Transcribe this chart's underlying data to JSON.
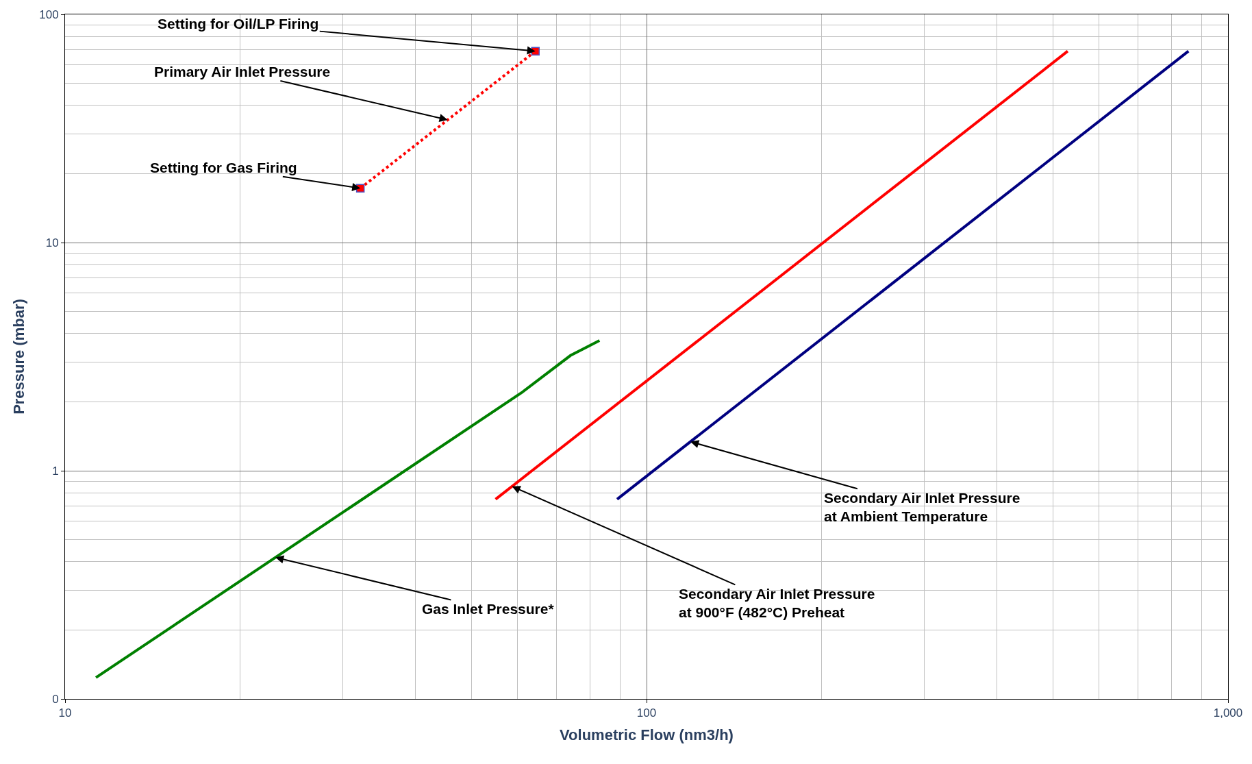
{
  "chart_data": {
    "type": "line",
    "xlabel": "Volumetric Flow (nm3/h)",
    "ylabel": "Pressure (mbar)",
    "log": "xy",
    "grid": true,
    "xlim": [
      10,
      1000
    ],
    "xticks": [
      10,
      100,
      {
        "value": 1000,
        "label": "1,000"
      }
    ],
    "ylim": [
      0.1,
      100
    ],
    "yticks": [
      {
        "value": 0.1,
        "label": "0"
      },
      1,
      10,
      100
    ],
    "series": [
      {
        "color": "#008000",
        "x": [
          11.3,
          61,
          74,
          83
        ],
        "values": [
          0.124,
          2.2,
          3.2,
          3.72
        ],
        "line_style": "solid",
        "marker": "none"
      },
      {
        "color": "#ff0000",
        "x": [
          55,
          530
        ],
        "values": [
          0.75,
          69
        ],
        "line_style": "solid",
        "marker": "none"
      },
      {
        "color": "#000080",
        "x": [
          89,
          855
        ],
        "values": [
          0.75,
          69
        ],
        "line_style": "solid",
        "marker": "none"
      },
      {
        "color": "#ff0000",
        "x": [
          32.2,
          64.4
        ],
        "values": [
          17.3,
          69
        ],
        "line_style": "dotted",
        "marker": "square"
      }
    ],
    "annotations": [
      {
        "text": "Setting for Oil/LP Firing",
        "x": 64.4,
        "y": 69
      },
      {
        "text": "Primary Air Inlet Pressure",
        "x": 45.5,
        "y": 34.5
      },
      {
        "text": "Setting for Gas Firing",
        "x": 32.2,
        "y": 17.3
      },
      {
        "text": "Secondary Air Inlet Pressure\nat Ambient Temperature",
        "x": 119,
        "y": 1.34
      },
      {
        "text": "Secondary Air Inlet Pressure\nat 900°F (482°C) Preheat",
        "x": 58.7,
        "y": 0.854
      },
      {
        "text": "Gas Inlet Pressure*",
        "x": 23,
        "y": 0.417
      }
    ]
  }
}
